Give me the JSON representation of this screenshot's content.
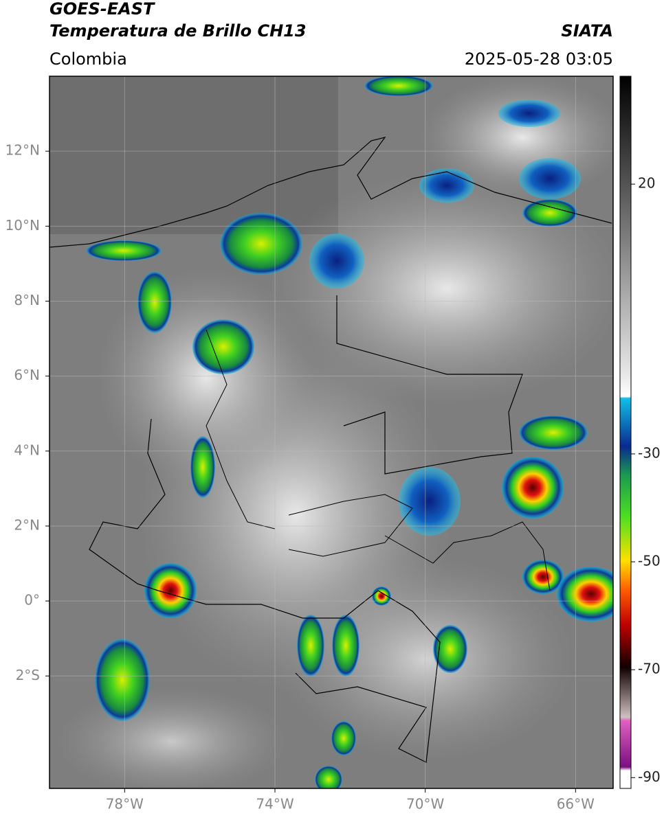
{
  "header": {
    "satellite": "GOES-EAST",
    "product": "Temperatura de Brillo CH13",
    "agency": "SIATA",
    "region": "Colombia",
    "datetime": "2025-05-28 03:05"
  },
  "map": {
    "xlim": [
      -80,
      -65
    ],
    "ylim": [
      -5,
      14
    ],
    "xticks": [
      {
        "value": -78,
        "label": "78°W"
      },
      {
        "value": -74,
        "label": "74°W"
      },
      {
        "value": -70,
        "label": "70°W"
      },
      {
        "value": -66,
        "label": "66°W"
      }
    ],
    "yticks": [
      {
        "value": 12,
        "label": "12°N"
      },
      {
        "value": 10,
        "label": "10°N"
      },
      {
        "value": 8,
        "label": "8°N"
      },
      {
        "value": 6,
        "label": "6°N"
      },
      {
        "value": 4,
        "label": "4°N"
      },
      {
        "value": 2,
        "label": "2°N"
      },
      {
        "value": 0,
        "label": "0°"
      },
      {
        "value": -2,
        "label": "2°S"
      }
    ]
  },
  "colorbar": {
    "lim": [
      -92,
      40
    ],
    "ticks": [
      20,
      -30,
      -50,
      -70,
      -90
    ]
  }
}
